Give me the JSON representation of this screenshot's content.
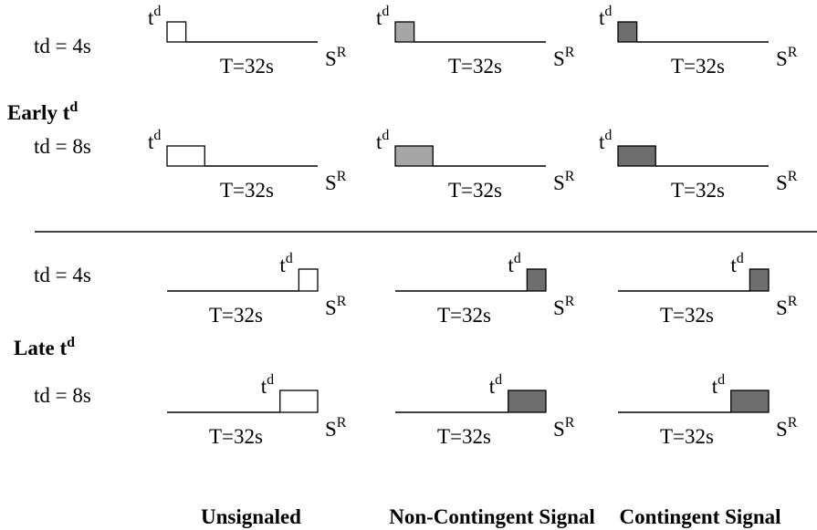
{
  "rows": [
    {
      "label": "td = 4s",
      "duration": 4,
      "position": "early"
    },
    {
      "label": "td = 8s",
      "duration": 8,
      "position": "early"
    },
    {
      "label": "td = 4s",
      "duration": 4,
      "position": "late"
    },
    {
      "label": "td = 8s",
      "duration": 8,
      "position": "late"
    }
  ],
  "sections": [
    {
      "main": "Early t",
      "sup": "d"
    },
    {
      "main": "Late t",
      "sup": "d"
    }
  ],
  "columns": [
    {
      "label": "Unsignaled",
      "fill": "#ffffff"
    },
    {
      "label": "Non-Contingent Signal",
      "fill": "#a6a6a6"
    },
    {
      "label": "Contingent Signal",
      "fill": "#6e6e6e"
    }
  ],
  "columns_late_override_fill": {
    "1": "#6e6e6e"
  },
  "timeline": {
    "interval_label": "T=32s",
    "total": 32,
    "delay_main": "t",
    "delay_sup": "d",
    "reinforcer_main": "S",
    "reinforcer_sup": "R"
  }
}
